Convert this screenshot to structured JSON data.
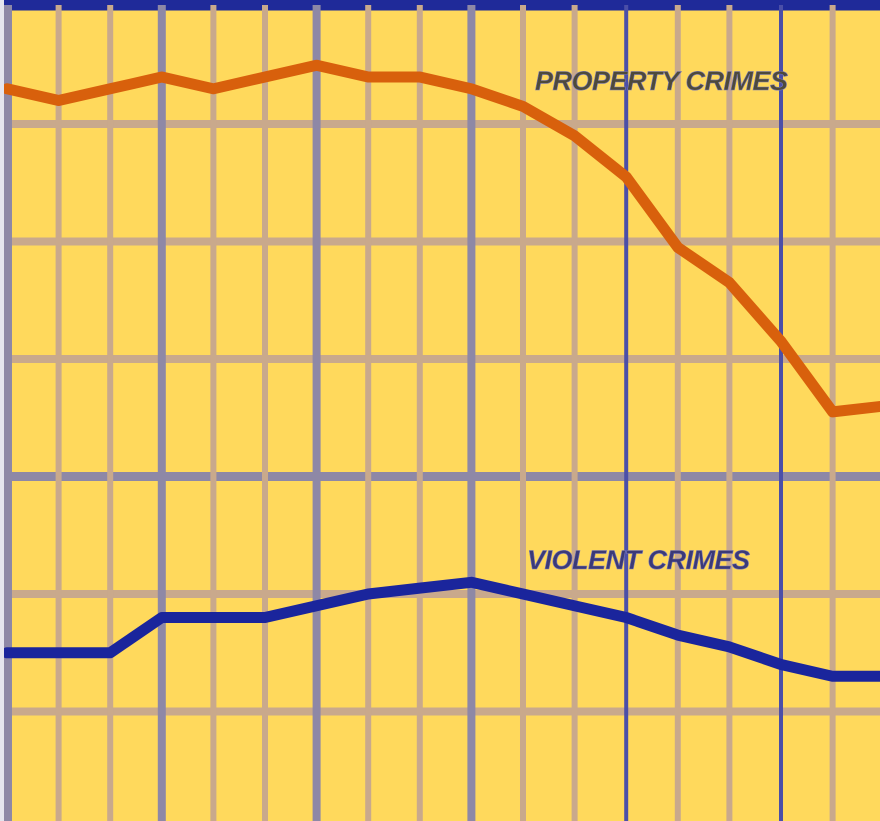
{
  "colors": {
    "background": "#FFD95C",
    "grid_light": "#C9A98C",
    "grid_dark": "#8E88A6",
    "grid_blue": "#4B4FA8",
    "frame_blue": "#1F2A99",
    "property_line": "#D8600C",
    "violent_line": "#1A259C",
    "label_text": "#4E4A3A",
    "label_shadow": "#7A78B8"
  },
  "chart_data": {
    "type": "line",
    "title": "",
    "xlabel": "",
    "ylabel": "",
    "xlim": [
      0,
      17
    ],
    "ylim": [
      0,
      7
    ],
    "grid": true,
    "legend": "inline labels",
    "x": [
      0,
      1,
      2,
      3,
      4,
      5,
      6,
      7,
      8,
      9,
      10,
      11,
      12,
      13,
      14,
      15,
      16,
      17
    ],
    "series": [
      {
        "name": "PROPERTY CRIMES",
        "color": "#D8600C",
        "values": [
          6.3,
          6.2,
          6.3,
          6.4,
          6.3,
          6.4,
          6.5,
          6.4,
          6.4,
          6.3,
          6.15,
          5.9,
          5.55,
          4.95,
          4.65,
          4.15,
          3.55,
          3.6
        ]
      },
      {
        "name": "VIOLENT CRIMES",
        "color": "#1A259C",
        "values": [
          1.5,
          1.5,
          1.5,
          1.8,
          1.8,
          1.8,
          1.9,
          2.0,
          2.05,
          2.1,
          2.0,
          1.9,
          1.8,
          1.65,
          1.55,
          1.4,
          1.3,
          1.3
        ]
      }
    ],
    "annotations": [
      {
        "text": "PROPERTY CRIMES",
        "series": "PROPERTY CRIMES"
      },
      {
        "text": "VIOLENT CRIMES",
        "series": "VIOLENT CRIMES"
      }
    ]
  }
}
